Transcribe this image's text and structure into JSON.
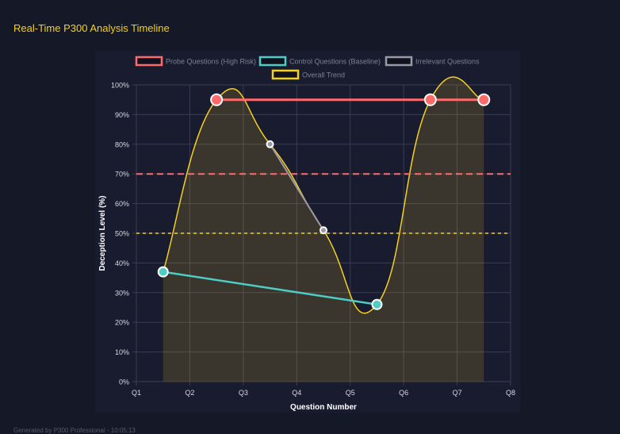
{
  "page": {
    "title": "Real-Time P300 Analysis Timeline",
    "footer": "Generated by P300 Professional - 10:05:13"
  },
  "chart_data": {
    "type": "line",
    "title": "",
    "xlabel": "Question Number",
    "ylabel": "Deception Level (%)",
    "x_ticks": [
      "Q1",
      "Q2",
      "Q3",
      "Q4",
      "Q5",
      "Q6",
      "Q7",
      "Q8"
    ],
    "xlim": [
      1,
      8
    ],
    "ylim": [
      0,
      100
    ],
    "y_ticks": [
      "0%",
      "10%",
      "20%",
      "30%",
      "40%",
      "50%",
      "60%",
      "70%",
      "80%",
      "90%",
      "100%"
    ],
    "grid": true,
    "legend_position": "top",
    "series": [
      {
        "name": "Probe Questions (High Risk)",
        "color": "#ff6b6b",
        "x": [
          2.5,
          6.5,
          7.5
        ],
        "y": [
          95,
          95,
          95
        ]
      },
      {
        "name": "Control Questions (Baseline)",
        "color": "#4ecdc4",
        "x": [
          1.5,
          5.5
        ],
        "y": [
          37,
          26
        ]
      },
      {
        "name": "Irrelevant Questions",
        "color": "#9a9aa5",
        "x": [
          3.5,
          4.5
        ],
        "y": [
          80,
          51
        ]
      },
      {
        "name": "Overall Trend",
        "color": "#f5d020",
        "x": [
          1.5,
          2.5,
          3.5,
          4.5,
          5.5,
          6.5,
          7.5
        ],
        "y": [
          37,
          95,
          80,
          51,
          26,
          95,
          95
        ],
        "smooth": true,
        "filled": true
      }
    ],
    "threshold_lines": [
      {
        "value": 70,
        "color": "#ff6b6b",
        "style": "dashed"
      },
      {
        "value": 50,
        "color": "#f5d020",
        "style": "dashed"
      }
    ]
  }
}
